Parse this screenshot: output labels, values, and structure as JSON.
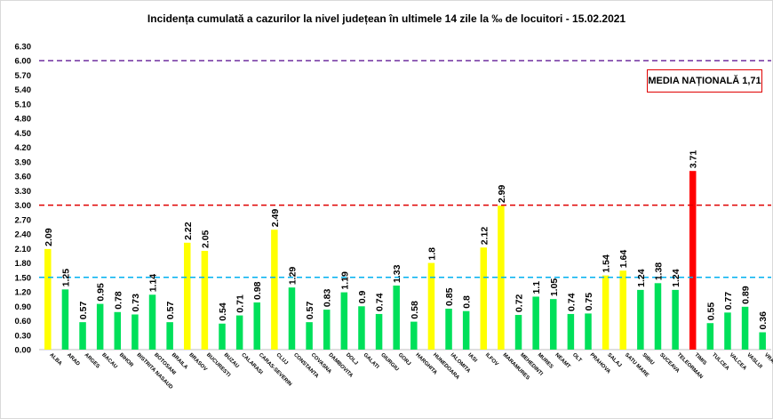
{
  "chart_data": {
    "type": "bar",
    "title": "Incidența cumulată a cazurilor la nivel județean în ultimele 14 zile la ‰ de locuitori - 15.02.2021",
    "national_average_label": "MEDIA NAȚIONALĂ  1,71",
    "ylim": [
      0,
      6.3
    ],
    "yticks": [
      "0.00",
      "0.30",
      "0.60",
      "0.90",
      "1.20",
      "1.50",
      "1.80",
      "2.10",
      "2.40",
      "2.70",
      "3.00",
      "3.30",
      "3.60",
      "3.90",
      "4.20",
      "4.50",
      "4.80",
      "5.10",
      "5.40",
      "5.70",
      "6.00",
      "6.30"
    ],
    "thresholds": [
      {
        "value": 1.5,
        "color": "#00b0f0"
      },
      {
        "value": 3.0,
        "color": "#e00000"
      },
      {
        "value": 6.0,
        "color": "#7030a0"
      }
    ],
    "colors": {
      "low": "#00e05a",
      "mid": "#ffff00",
      "high": "#ff0000"
    },
    "categories": [
      "ALBA",
      "ARAD",
      "ARGES",
      "BACAU",
      "BIHOR",
      "BISTRITA NASAUD",
      "BOTOSANI",
      "BRAILA",
      "BRASOV",
      "BUCURESTI",
      "BUZAU",
      "CALARASI",
      "CARAS-SEVERIN",
      "CLUJ",
      "CONSTANTA",
      "COVASNA",
      "DAMBOVITA",
      "DOLJ",
      "GALATI",
      "GIURGIU",
      "GORJ",
      "HARGHITA",
      "HUNEDOARA",
      "IALOMITA",
      "IASI",
      "ILFOV",
      "MARAMURES",
      "MEHEDINTI",
      "MURES",
      "NEAMT",
      "OLT",
      "PRAHOVA",
      "SALAJ",
      "SATU MARE",
      "SIBIU",
      "SUCEAVA",
      "TELEORMAN",
      "TIMIS",
      "TULCEA",
      "VALCEA",
      "VASLUI",
      "VRANCEA"
    ],
    "values": [
      2.09,
      1.25,
      0.57,
      0.95,
      0.78,
      0.73,
      1.14,
      0.57,
      2.22,
      2.05,
      0.54,
      0.71,
      0.98,
      2.49,
      1.29,
      0.57,
      0.83,
      1.19,
      0.9,
      0.74,
      1.33,
      0.58,
      1.8,
      0.85,
      0.8,
      2.12,
      2.99,
      0.72,
      1.1,
      1.05,
      0.74,
      0.75,
      1.54,
      1.64,
      1.24,
      1.38,
      1.24,
      3.71,
      0.55,
      0.77,
      0.89,
      0.36
    ],
    "value_labels": [
      "2.09",
      "1.25",
      "0.57",
      "0.95",
      "0.78",
      "0.73",
      "1.14",
      "0.57",
      "2.22",
      "2.05",
      "0.54",
      "0.71",
      "0.98",
      "2.49",
      "1.29",
      "0.57",
      "0.83",
      "1.19",
      "0.9",
      "0.74",
      "1.33",
      "0.58",
      "1.8",
      "0.85",
      "0.8",
      "2.12",
      "2.99",
      "0.72",
      "1.1",
      "1.05",
      "0.74",
      "0.75",
      "1.54",
      "1.64",
      "1.24",
      "1.38",
      "1.24",
      "3.71",
      "0.55",
      "0.77",
      "0.89",
      "0.36"
    ]
  }
}
